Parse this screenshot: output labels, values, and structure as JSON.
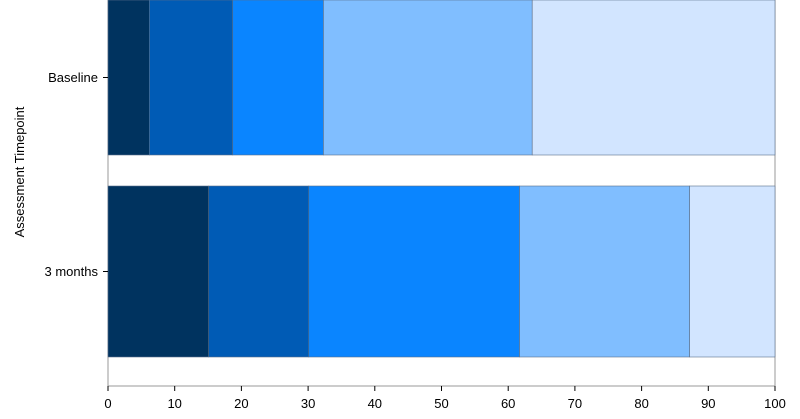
{
  "chart_data": {
    "type": "bar",
    "orientation": "horizontal",
    "stacked": true,
    "ylabel": "Assessment Timepoint",
    "xlabel": "",
    "title": "",
    "categories": [
      "Baseline",
      "3 months"
    ],
    "xlim": [
      0,
      100
    ],
    "xticks": [
      "0",
      "10",
      "20",
      "30",
      "40",
      "50",
      "60",
      "70",
      "80",
      "90",
      "100"
    ],
    "grid": false,
    "legend": "none visible",
    "series": [
      {
        "color": "#00335F",
        "values": [
          6.2,
          15.1
        ]
      },
      {
        "color": "#005BB5",
        "values": [
          12.5,
          15.0
        ]
      },
      {
        "color": "#0A85FF",
        "values": [
          13.6,
          31.6
        ]
      },
      {
        "color": "#80BEFF",
        "values": [
          31.3,
          25.5
        ]
      },
      {
        "color": "#D2E5FF",
        "values": [
          36.4,
          12.8
        ]
      }
    ]
  }
}
